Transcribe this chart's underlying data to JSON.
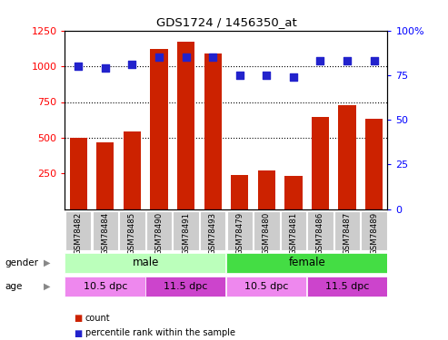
{
  "title": "GDS1724 / 1456350_at",
  "samples": [
    "GSM78482",
    "GSM78484",
    "GSM78485",
    "GSM78490",
    "GSM78491",
    "GSM78493",
    "GSM78479",
    "GSM78480",
    "GSM78481",
    "GSM78486",
    "GSM78487",
    "GSM78489"
  ],
  "counts": [
    500,
    470,
    545,
    1120,
    1175,
    1090,
    240,
    270,
    235,
    645,
    730,
    630
  ],
  "percentile": [
    80,
    79,
    81,
    85,
    85,
    85,
    75,
    75,
    74,
    83,
    83,
    83
  ],
  "ylim_left": [
    0,
    1250
  ],
  "ylim_right": [
    0,
    100
  ],
  "yticks_left": [
    250,
    500,
    750,
    1000,
    1250
  ],
  "yticks_right": [
    0,
    25,
    50,
    75,
    100
  ],
  "bar_color": "#cc2200",
  "dot_color": "#2222cc",
  "tick_label_bg": "#cccccc",
  "gender_male_light": "#bbffbb",
  "gender_female_bright": "#44dd44",
  "age_light_pink": "#ee88ee",
  "age_dark_pink": "#cc44cc",
  "gender_groups": [
    {
      "label": "male",
      "start": 0,
      "end": 6
    },
    {
      "label": "female",
      "start": 6,
      "end": 12
    }
  ],
  "age_groups": [
    {
      "label": "10.5 dpc",
      "start": 0,
      "end": 3,
      "light": true
    },
    {
      "label": "11.5 dpc",
      "start": 3,
      "end": 6,
      "light": false
    },
    {
      "label": "10.5 dpc",
      "start": 6,
      "end": 9,
      "light": true
    },
    {
      "label": "11.5 dpc",
      "start": 9,
      "end": 12,
      "light": false
    }
  ]
}
